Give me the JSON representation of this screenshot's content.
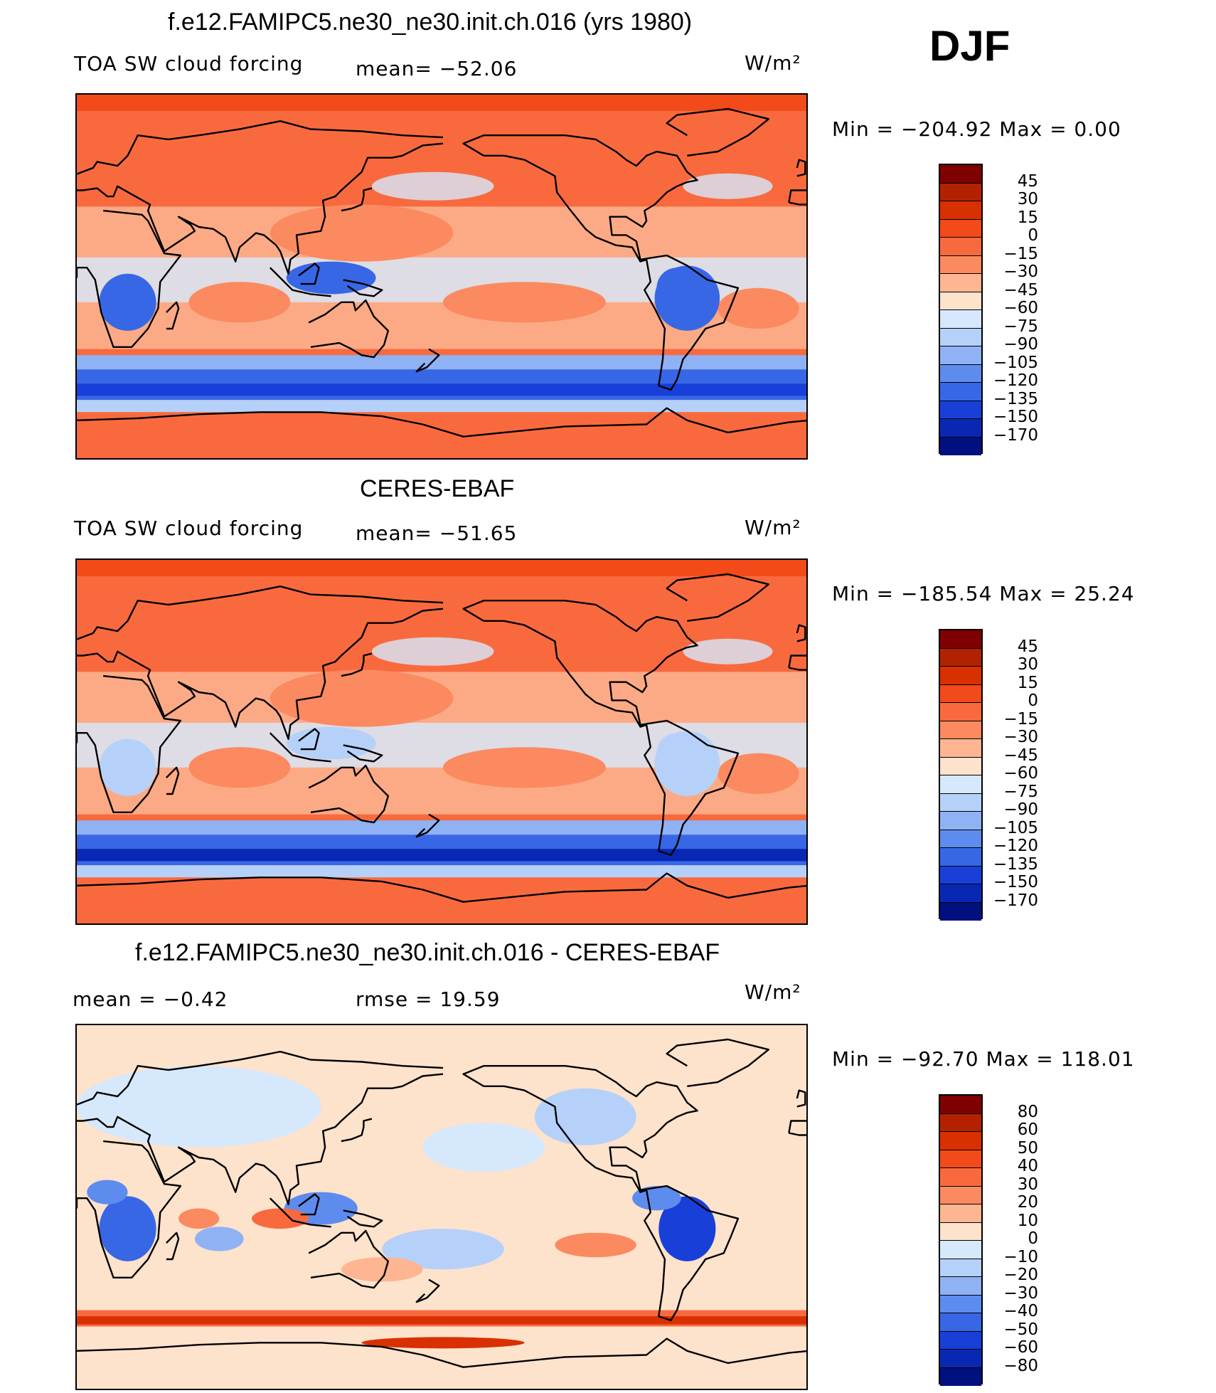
{
  "season": "DJF",
  "panels": [
    {
      "title": "f.e12.FAMIPC5.ne30_ne30.init.ch.016 (yrs 1980)",
      "left_label": "TOA SW cloud forcing",
      "stat1": "mean= −52.06",
      "stat2": "",
      "units": "W/m²",
      "minmax": "Min = −204.92 Max =    0.00",
      "levels": [
        "45",
        "30",
        "15",
        "0",
        "−15",
        "−30",
        "−45",
        "−60",
        "−75",
        "−90",
        "−105",
        "−120",
        "−135",
        "−150",
        "−170"
      ],
      "colors": [
        "#7f0000",
        "#b22200",
        "#d83000",
        "#f24a18",
        "#f86a3e",
        "#fb8a60",
        "#fdb592",
        "#fde2cc",
        "#d6e8fb",
        "#b6d1f9",
        "#8fb2f5",
        "#5e8cee",
        "#3867e6",
        "#1840d8",
        "#0828b4",
        "#00107f"
      ]
    },
    {
      "title": "CERES-EBAF",
      "left_label": "TOA SW cloud forcing",
      "stat1": "mean= −51.65",
      "stat2": "",
      "units": "W/m²",
      "minmax": "Min = −185.54 Max =   25.24",
      "levels": [
        "45",
        "30",
        "15",
        "0",
        "−15",
        "−30",
        "−45",
        "−60",
        "−75",
        "−90",
        "−105",
        "−120",
        "−135",
        "−150",
        "−170"
      ],
      "colors": [
        "#7f0000",
        "#b22200",
        "#d83000",
        "#f24a18",
        "#f86a3e",
        "#fb8a60",
        "#fdb592",
        "#fde2cc",
        "#d6e8fb",
        "#b6d1f9",
        "#8fb2f5",
        "#5e8cee",
        "#3867e6",
        "#1840d8",
        "#0828b4",
        "#00107f"
      ]
    },
    {
      "title": "f.e12.FAMIPC5.ne30_ne30.init.ch.016 - CERES-EBAF",
      "left_label": "mean =   −0.42",
      "stat1": "rmse =   19.59",
      "stat2": "",
      "units": "W/m²",
      "minmax": "Min = −92.70 Max = 118.01",
      "levels": [
        "80",
        "60",
        "50",
        "40",
        "30",
        "20",
        "10",
        "0",
        "−10",
        "−20",
        "−30",
        "−40",
        "−50",
        "−60",
        "−80"
      ],
      "colors": [
        "#7f0000",
        "#b22200",
        "#d83000",
        "#f24a18",
        "#f86a3e",
        "#fb8a60",
        "#fdb592",
        "#fde2cc",
        "#d6e8fb",
        "#b6d1f9",
        "#8fb2f5",
        "#5e8cee",
        "#3867e6",
        "#1840d8",
        "#0828b4",
        "#00107f"
      ]
    }
  ],
  "chart_data": [
    {
      "type": "heatmap",
      "title": "f.e12.FAMIPC5.ne30_ne30.init.ch.016 (yrs 1980)",
      "variable": "TOA SW cloud forcing",
      "units": "W/m²",
      "mean": -52.06,
      "min": -204.92,
      "max": 0.0,
      "contour_levels": [
        45,
        30,
        15,
        0,
        -15,
        -30,
        -45,
        -60,
        -75,
        -90,
        -105,
        -120,
        -135,
        -150,
        -170
      ]
    },
    {
      "type": "heatmap",
      "title": "CERES-EBAF",
      "variable": "TOA SW cloud forcing",
      "units": "W/m²",
      "mean": -51.65,
      "min": -185.54,
      "max": 25.24,
      "contour_levels": [
        45,
        30,
        15,
        0,
        -15,
        -30,
        -45,
        -60,
        -75,
        -90,
        -105,
        -120,
        -135,
        -150,
        -170
      ]
    },
    {
      "type": "heatmap",
      "title": "f.e12.FAMIPC5.ne30_ne30.init.ch.016 - CERES-EBAF",
      "units": "W/m²",
      "mean": -0.42,
      "rmse": 19.59,
      "min": -92.7,
      "max": 118.01,
      "contour_levels": [
        80,
        60,
        50,
        40,
        30,
        20,
        10,
        0,
        -10,
        -20,
        -30,
        -40,
        -50,
        -60,
        -80
      ]
    }
  ]
}
